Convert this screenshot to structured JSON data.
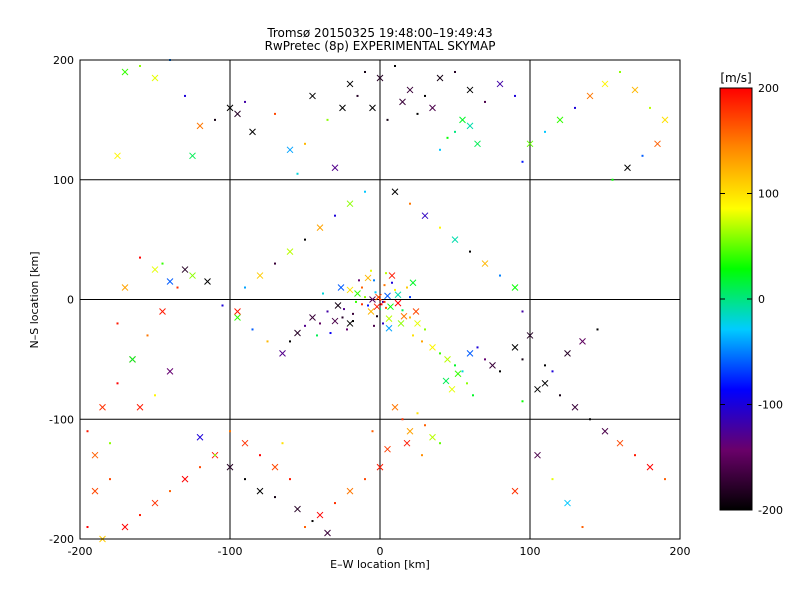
{
  "chart_data": {
    "type": "scatter",
    "title": "Tromsø 20150325 19:48:00–19:49:43",
    "subtitle": "RwPretec (8p) EXPERIMENTAL SKYMAP",
    "xlabel": "E–W location [km]",
    "ylabel": "N–S location [km]",
    "xlim": [
      -200,
      200
    ],
    "ylim": [
      -200,
      200
    ],
    "xticks": [
      -200,
      -100,
      0,
      100,
      200
    ],
    "yticks": [
      -200,
      -100,
      0,
      100,
      200
    ],
    "grid": true,
    "markers": [
      "dot",
      "x"
    ],
    "colorbar": {
      "label": "[m/s]",
      "range": [
        -200,
        200
      ],
      "ticks": [
        200,
        100,
        0,
        -100,
        -200
      ],
      "colormap": [
        "#000000",
        "#6a006a",
        "#0000ff",
        "#00ccff",
        "#00ff00",
        "#ffff00",
        "#ff8800",
        "#ff0000"
      ]
    },
    "points": [
      [
        -5,
        0,
        -150,
        "x"
      ],
      [
        2,
        -2,
        -120,
        "dot"
      ],
      [
        -8,
        -5,
        -80,
        "dot"
      ],
      [
        5,
        3,
        -60,
        "x"
      ],
      [
        -3,
        6,
        -30,
        "dot"
      ],
      [
        0,
        -8,
        0,
        "dot"
      ],
      [
        7,
        -6,
        30,
        "x"
      ],
      [
        -10,
        2,
        60,
        "dot"
      ],
      [
        10,
        8,
        90,
        "dot"
      ],
      [
        -6,
        -10,
        120,
        "x"
      ],
      [
        3,
        12,
        150,
        "dot"
      ],
      [
        -12,
        -4,
        180,
        "dot"
      ],
      [
        12,
        -3,
        200,
        "x"
      ],
      [
        -2,
        -14,
        -190,
        "dot"
      ],
      [
        8,
        14,
        -100,
        "dot"
      ],
      [
        -15,
        5,
        40,
        "x"
      ],
      [
        15,
        -9,
        10,
        "dot"
      ],
      [
        -4,
        16,
        -50,
        "dot"
      ],
      [
        6,
        -16,
        70,
        "x"
      ],
      [
        -18,
        -12,
        -170,
        "dot"
      ],
      [
        18,
        10,
        110,
        "dot"
      ],
      [
        -20,
        -20,
        -200,
        "x"
      ],
      [
        -25,
        -15,
        -180,
        "dot"
      ],
      [
        -30,
        -18,
        -160,
        "x"
      ],
      [
        -22,
        -25,
        -140,
        "dot"
      ],
      [
        -35,
        -10,
        -120,
        "dot"
      ],
      [
        -28,
        -5,
        -190,
        "x"
      ],
      [
        -40,
        -20,
        -150,
        "dot"
      ],
      [
        -45,
        -15,
        -170,
        "x"
      ],
      [
        -50,
        -22,
        -130,
        "dot"
      ],
      [
        -33,
        -28,
        -90,
        "dot"
      ],
      [
        -26,
        10,
        -60,
        "x"
      ],
      [
        -38,
        5,
        -20,
        "dot"
      ],
      [
        -42,
        -30,
        10,
        "dot"
      ],
      [
        -55,
        -28,
        -180,
        "x"
      ],
      [
        -60,
        -35,
        -200,
        "dot"
      ],
      [
        20,
        -15,
        120,
        "dot"
      ],
      [
        25,
        -20,
        80,
        "x"
      ],
      [
        30,
        -25,
        60,
        "dot"
      ],
      [
        22,
        -30,
        100,
        "dot"
      ],
      [
        35,
        -40,
        90,
        "x"
      ],
      [
        40,
        -45,
        40,
        "dot"
      ],
      [
        28,
        -35,
        130,
        "dot"
      ],
      [
        45,
        -50,
        70,
        "x"
      ],
      [
        50,
        -55,
        20,
        "dot"
      ],
      [
        55,
        -60,
        -20,
        "dot"
      ],
      [
        60,
        -45,
        -60,
        "x"
      ],
      [
        65,
        -40,
        -100,
        "dot"
      ],
      [
        70,
        -50,
        -140,
        "dot"
      ],
      [
        75,
        -55,
        -170,
        "x"
      ],
      [
        80,
        -60,
        -200,
        "dot"
      ],
      [
        90,
        -40,
        -200,
        "x"
      ],
      [
        95,
        -50,
        -190,
        "dot"
      ],
      [
        100,
        -30,
        -180,
        "x"
      ],
      [
        110,
        -55,
        -200,
        "dot"
      ],
      [
        52,
        -62,
        40,
        "x"
      ],
      [
        58,
        -70,
        60,
        "dot"
      ],
      [
        48,
        -75,
        80,
        "x"
      ],
      [
        62,
        -80,
        20,
        "dot"
      ],
      [
        44,
        -68,
        10,
        "x"
      ],
      [
        10,
        -90,
        150,
        "x"
      ],
      [
        15,
        -100,
        180,
        "dot"
      ],
      [
        20,
        -110,
        130,
        "x"
      ],
      [
        25,
        -95,
        100,
        "dot"
      ],
      [
        30,
        -105,
        160,
        "dot"
      ],
      [
        35,
        -115,
        70,
        "x"
      ],
      [
        40,
        -120,
        50,
        "dot"
      ],
      [
        18,
        -120,
        190,
        "x"
      ],
      [
        28,
        -130,
        140,
        "dot"
      ],
      [
        5,
        -125,
        175,
        "x"
      ],
      [
        -5,
        -110,
        160,
        "dot"
      ],
      [
        0,
        -140,
        190,
        "x"
      ],
      [
        -10,
        -150,
        170,
        "dot"
      ],
      [
        -20,
        -160,
        150,
        "x"
      ],
      [
        -30,
        -170,
        180,
        "dot"
      ],
      [
        -40,
        -180,
        200,
        "x"
      ],
      [
        -50,
        -190,
        160,
        "dot"
      ],
      [
        -60,
        -150,
        190,
        "dot"
      ],
      [
        -70,
        -140,
        170,
        "x"
      ],
      [
        -80,
        -130,
        200,
        "dot"
      ],
      [
        -90,
        -120,
        180,
        "x"
      ],
      [
        -100,
        -110,
        150,
        "dot"
      ],
      [
        -110,
        -130,
        190,
        "x"
      ],
      [
        -120,
        -140,
        170,
        "dot"
      ],
      [
        -130,
        -150,
        200,
        "x"
      ],
      [
        -140,
        -160,
        160,
        "dot"
      ],
      [
        -150,
        -170,
        180,
        "x"
      ],
      [
        -160,
        -180,
        190,
        "dot"
      ],
      [
        -170,
        -190,
        200,
        "x"
      ],
      [
        -180,
        -150,
        170,
        "dot"
      ],
      [
        -190,
        -130,
        160,
        "x"
      ],
      [
        -195,
        -110,
        190,
        "dot"
      ],
      [
        -185,
        -90,
        180,
        "x"
      ],
      [
        -175,
        -70,
        200,
        "dot"
      ],
      [
        -165,
        -50,
        170,
        "x"
      ],
      [
        -155,
        -30,
        150,
        "dot"
      ],
      [
        -145,
        -10,
        190,
        "x"
      ],
      [
        -135,
        10,
        180,
        "dot"
      ],
      [
        -125,
        20,
        60,
        "x"
      ],
      [
        -115,
        15,
        -200,
        "x"
      ],
      [
        -105,
        -5,
        -100,
        "dot"
      ],
      [
        -95,
        -15,
        40,
        "x"
      ],
      [
        -85,
        -25,
        -60,
        "dot"
      ],
      [
        -75,
        -35,
        120,
        "dot"
      ],
      [
        -65,
        -45,
        -130,
        "x"
      ],
      [
        -120,
        -115,
        -100,
        "x"
      ],
      [
        -110,
        -130,
        60,
        "dot"
      ],
      [
        -100,
        -140,
        -180,
        "x"
      ],
      [
        -90,
        -150,
        -200,
        "dot"
      ],
      [
        -80,
        -160,
        -200,
        "x"
      ],
      [
        -70,
        -165,
        -190,
        "dot"
      ],
      [
        -55,
        -175,
        -180,
        "x"
      ],
      [
        -45,
        -185,
        -200,
        "dot"
      ],
      [
        -35,
        -195,
        -170,
        "x"
      ],
      [
        -65,
        -120,
        100,
        "dot"
      ],
      [
        110,
        -70,
        -200,
        "x"
      ],
      [
        120,
        -80,
        -190,
        "dot"
      ],
      [
        130,
        -90,
        -170,
        "x"
      ],
      [
        140,
        -100,
        -200,
        "dot"
      ],
      [
        150,
        -110,
        -160,
        "x"
      ],
      [
        160,
        -120,
        170,
        "x"
      ],
      [
        170,
        -130,
        190,
        "dot"
      ],
      [
        180,
        -140,
        200,
        "x"
      ],
      [
        190,
        -150,
        160,
        "dot"
      ],
      [
        125,
        -45,
        -180,
        "x"
      ],
      [
        145,
        -25,
        -200,
        "dot"
      ],
      [
        135,
        -35,
        -150,
        "x"
      ],
      [
        115,
        -60,
        -100,
        "dot"
      ],
      [
        105,
        -75,
        -200,
        "x"
      ],
      [
        95,
        -85,
        30,
        "dot"
      ],
      [
        105,
        -130,
        -160,
        "x"
      ],
      [
        115,
        -150,
        80,
        "dot"
      ],
      [
        125,
        -170,
        -30,
        "x"
      ],
      [
        135,
        -190,
        160,
        "dot"
      ],
      [
        90,
        -160,
        180,
        "x"
      ],
      [
        -20,
        180,
        -200,
        "x"
      ],
      [
        -10,
        190,
        -190,
        "dot"
      ],
      [
        0,
        185,
        -180,
        "x"
      ],
      [
        10,
        195,
        -200,
        "dot"
      ],
      [
        20,
        175,
        -170,
        "x"
      ],
      [
        30,
        170,
        -200,
        "dot"
      ],
      [
        40,
        185,
        -190,
        "x"
      ],
      [
        50,
        190,
        -180,
        "dot"
      ],
      [
        60,
        175,
        -200,
        "x"
      ],
      [
        70,
        165,
        -160,
        "dot"
      ],
      [
        80,
        180,
        -120,
        "x"
      ],
      [
        90,
        170,
        -100,
        "dot"
      ],
      [
        55,
        150,
        20,
        "x"
      ],
      [
        50,
        140,
        0,
        "dot"
      ],
      [
        60,
        145,
        -10,
        "x"
      ],
      [
        45,
        135,
        30,
        "dot"
      ],
      [
        65,
        130,
        10,
        "x"
      ],
      [
        40,
        125,
        -30,
        "dot"
      ],
      [
        -5,
        160,
        -200,
        "x"
      ],
      [
        5,
        150,
        -190,
        "dot"
      ],
      [
        15,
        165,
        -170,
        "x"
      ],
      [
        25,
        155,
        -200,
        "dot"
      ],
      [
        35,
        160,
        -160,
        "x"
      ],
      [
        -15,
        170,
        -180,
        "dot"
      ],
      [
        -25,
        160,
        -200,
        "x"
      ],
      [
        -100,
        160,
        -200,
        "x"
      ],
      [
        -110,
        150,
        -190,
        "dot"
      ],
      [
        -95,
        155,
        -180,
        "x"
      ],
      [
        -130,
        170,
        -100,
        "dot"
      ],
      [
        -120,
        145,
        150,
        "x"
      ],
      [
        -150,
        185,
        80,
        "x"
      ],
      [
        -160,
        195,
        60,
        "dot"
      ],
      [
        -170,
        190,
        40,
        "x"
      ],
      [
        -140,
        200,
        -50,
        "dot"
      ],
      [
        -175,
        120,
        90,
        "x"
      ],
      [
        -125,
        120,
        10,
        "x"
      ],
      [
        -90,
        165,
        -120,
        "dot"
      ],
      [
        -85,
        140,
        -200,
        "x"
      ],
      [
        -70,
        155,
        170,
        "dot"
      ],
      [
        -60,
        125,
        -40,
        "x"
      ],
      [
        -50,
        130,
        120,
        "dot"
      ],
      [
        -45,
        170,
        -200,
        "x"
      ],
      [
        -35,
        150,
        60,
        "dot"
      ],
      [
        -30,
        110,
        -130,
        "x"
      ],
      [
        -55,
        105,
        -20,
        "dot"
      ],
      [
        150,
        180,
        90,
        "x"
      ],
      [
        160,
        190,
        60,
        "dot"
      ],
      [
        170,
        175,
        120,
        "x"
      ],
      [
        180,
        160,
        70,
        "dot"
      ],
      [
        190,
        150,
        100,
        "x"
      ],
      [
        140,
        170,
        150,
        "x"
      ],
      [
        130,
        160,
        -100,
        "dot"
      ],
      [
        120,
        150,
        40,
        "x"
      ],
      [
        110,
        140,
        -30,
        "dot"
      ],
      [
        185,
        130,
        160,
        "x"
      ],
      [
        175,
        120,
        -60,
        "dot"
      ],
      [
        165,
        110,
        -200,
        "x"
      ],
      [
        155,
        100,
        30,
        "dot"
      ],
      [
        100,
        130,
        50,
        "x"
      ],
      [
        95,
        115,
        -80,
        "dot"
      ],
      [
        -150,
        25,
        80,
        "x"
      ],
      [
        -145,
        30,
        40,
        "dot"
      ],
      [
        -140,
        15,
        -60,
        "x"
      ],
      [
        -130,
        25,
        -180,
        "x"
      ],
      [
        -160,
        35,
        200,
        "dot"
      ],
      [
        -170,
        10,
        130,
        "x"
      ],
      [
        -175,
        -20,
        190,
        "dot"
      ],
      [
        -165,
        -50,
        20,
        "x"
      ],
      [
        -150,
        -80,
        90,
        "dot"
      ],
      [
        -140,
        -60,
        -140,
        "x"
      ],
      [
        -160,
        -90,
        190,
        "x"
      ],
      [
        -180,
        -120,
        60,
        "dot"
      ],
      [
        -190,
        -160,
        170,
        "x"
      ],
      [
        -195,
        -190,
        200,
        "dot"
      ],
      [
        -185,
        -200,
        110,
        "x"
      ],
      [
        -50,
        50,
        -200,
        "dot"
      ],
      [
        -40,
        60,
        130,
        "x"
      ],
      [
        -30,
        70,
        -100,
        "dot"
      ],
      [
        -20,
        80,
        60,
        "x"
      ],
      [
        -10,
        90,
        -30,
        "dot"
      ],
      [
        10,
        90,
        -200,
        "x"
      ],
      [
        20,
        80,
        150,
        "dot"
      ],
      [
        30,
        70,
        -110,
        "x"
      ],
      [
        40,
        60,
        90,
        "dot"
      ],
      [
        50,
        50,
        -10,
        "x"
      ],
      [
        60,
        40,
        -200,
        "dot"
      ],
      [
        70,
        30,
        120,
        "x"
      ],
      [
        80,
        20,
        -50,
        "dot"
      ],
      [
        90,
        10,
        30,
        "x"
      ],
      [
        95,
        -10,
        -120,
        "dot"
      ],
      [
        -60,
        40,
        70,
        "x"
      ],
      [
        -70,
        30,
        -170,
        "dot"
      ],
      [
        -80,
        20,
        110,
        "x"
      ],
      [
        -90,
        10,
        -40,
        "dot"
      ],
      [
        -95,
        -10,
        190,
        "x"
      ],
      [
        -12,
        10,
        160,
        "dot"
      ],
      [
        -8,
        18,
        120,
        "x"
      ],
      [
        4,
        22,
        70,
        "dot"
      ],
      [
        12,
        4,
        -10,
        "x"
      ],
      [
        -16,
        -2,
        40,
        "dot"
      ],
      [
        2,
        -20,
        -110,
        "dot"
      ],
      [
        16,
        -14,
        150,
        "x"
      ],
      [
        -4,
        -22,
        -160,
        "dot"
      ],
      [
        -20,
        8,
        100,
        "x"
      ],
      [
        20,
        2,
        -70,
        "dot"
      ],
      [
        8,
        20,
        190,
        "x"
      ],
      [
        -14,
        16,
        -140,
        "dot"
      ],
      [
        14,
        -20,
        60,
        "x"
      ],
      [
        -18,
        -18,
        -200,
        "dot"
      ],
      [
        22,
        14,
        20,
        "x"
      ],
      [
        -24,
        -8,
        -130,
        "dot"
      ],
      [
        24,
        -10,
        170,
        "x"
      ],
      [
        -6,
        24,
        80,
        "dot"
      ],
      [
        6,
        -24,
        -40,
        "x"
      ],
      [
        0,
        0,
        200,
        "dot"
      ],
      [
        1,
        -4,
        200,
        "dot"
      ],
      [
        -2,
        -6,
        190,
        "x"
      ],
      [
        3,
        -2,
        180,
        "dot"
      ],
      [
        -1,
        2,
        170,
        "x"
      ],
      [
        4,
        -7,
        160,
        "dot"
      ]
    ]
  }
}
